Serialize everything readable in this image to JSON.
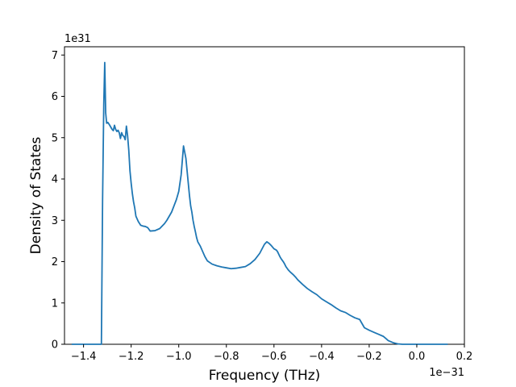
{
  "chart_data": {
    "type": "line",
    "title": "",
    "xlabel": "Frequency (THz)",
    "ylabel": "Density of States",
    "x_offset_label": "1e−31",
    "y_offset_label": "1e31",
    "xlim": [
      -1.48,
      0.2
    ],
    "ylim": [
      0,
      7.2
    ],
    "x_ticks": [
      -1.4,
      -1.2,
      -1.0,
      -0.8,
      -0.6,
      -0.4,
      -0.2,
      0.0,
      0.2
    ],
    "x_tick_labels": [
      "−1.4",
      "−1.2",
      "−1.0",
      "−0.8",
      "−0.6",
      "−0.4",
      "−0.2",
      "0.0",
      "0.2"
    ],
    "y_ticks": [
      0,
      1,
      2,
      3,
      4,
      5,
      6,
      7
    ],
    "y_tick_labels": [
      "0",
      "1",
      "2",
      "3",
      "4",
      "5",
      "6",
      "7"
    ],
    "grid": false,
    "series": [
      {
        "color": "#1f77b4",
        "x": [
          -1.45,
          -1.33,
          -1.325,
          -1.32,
          -1.315,
          -1.311,
          -1.307,
          -1.303,
          -1.298,
          -1.29,
          -1.28,
          -1.275,
          -1.27,
          -1.265,
          -1.26,
          -1.255,
          -1.25,
          -1.245,
          -1.24,
          -1.235,
          -1.23,
          -1.225,
          -1.22,
          -1.215,
          -1.21,
          -1.205,
          -1.2,
          -1.195,
          -1.19,
          -1.185,
          -1.18,
          -1.17,
          -1.16,
          -1.15,
          -1.14,
          -1.13,
          -1.12,
          -1.1,
          -1.08,
          -1.06,
          -1.05,
          -1.03,
          -1.01,
          -1.0,
          -0.99,
          -0.98,
          -0.97,
          -0.96,
          -0.955,
          -0.95,
          -0.945,
          -0.94,
          -0.935,
          -0.93,
          -0.925,
          -0.92,
          -0.91,
          -0.9,
          -0.89,
          -0.88,
          -0.86,
          -0.84,
          -0.82,
          -0.8,
          -0.78,
          -0.76,
          -0.74,
          -0.72,
          -0.7,
          -0.68,
          -0.66,
          -0.64,
          -0.63,
          -0.62,
          -0.61,
          -0.6,
          -0.59,
          -0.585,
          -0.58,
          -0.575,
          -0.57,
          -0.565,
          -0.56,
          -0.555,
          -0.55,
          -0.54,
          -0.53,
          -0.52,
          -0.51,
          -0.5,
          -0.48,
          -0.46,
          -0.44,
          -0.42,
          -0.4,
          -0.38,
          -0.36,
          -0.34,
          -0.32,
          -0.3,
          -0.28,
          -0.26,
          -0.24,
          -0.22,
          -0.2,
          -0.18,
          -0.16,
          -0.14,
          -0.13,
          -0.12,
          -0.1,
          -0.08,
          -0.06,
          -0.04,
          -0.02,
          0.0,
          0.03,
          0.13
        ],
        "y": [
          0,
          0,
          0,
          3.5,
          5.8,
          6.82,
          5.6,
          5.35,
          5.37,
          5.3,
          5.2,
          5.17,
          5.3,
          5.2,
          5.15,
          5.18,
          5.12,
          4.98,
          5.12,
          5.05,
          5.03,
          4.95,
          5.28,
          5.05,
          4.7,
          4.2,
          3.9,
          3.65,
          3.45,
          3.3,
          3.1,
          2.97,
          2.88,
          2.86,
          2.85,
          2.82,
          2.74,
          2.75,
          2.8,
          2.92,
          3.0,
          3.2,
          3.5,
          3.7,
          4.1,
          4.8,
          4.5,
          3.9,
          3.6,
          3.35,
          3.2,
          3.0,
          2.85,
          2.72,
          2.58,
          2.48,
          2.38,
          2.25,
          2.12,
          2.02,
          1.94,
          1.9,
          1.87,
          1.85,
          1.83,
          1.84,
          1.86,
          1.88,
          1.95,
          2.05,
          2.2,
          2.42,
          2.48,
          2.44,
          2.38,
          2.31,
          2.28,
          2.24,
          2.18,
          2.12,
          2.07,
          2.03,
          1.99,
          1.94,
          1.88,
          1.8,
          1.74,
          1.69,
          1.63,
          1.56,
          1.45,
          1.35,
          1.27,
          1.2,
          1.1,
          1.03,
          0.96,
          0.88,
          0.81,
          0.77,
          0.7,
          0.64,
          0.6,
          0.4,
          0.34,
          0.29,
          0.24,
          0.19,
          0.14,
          0.09,
          0.04,
          0.01,
          0.0,
          0.0,
          0.0,
          0.0,
          0.0,
          0.0
        ]
      }
    ]
  }
}
